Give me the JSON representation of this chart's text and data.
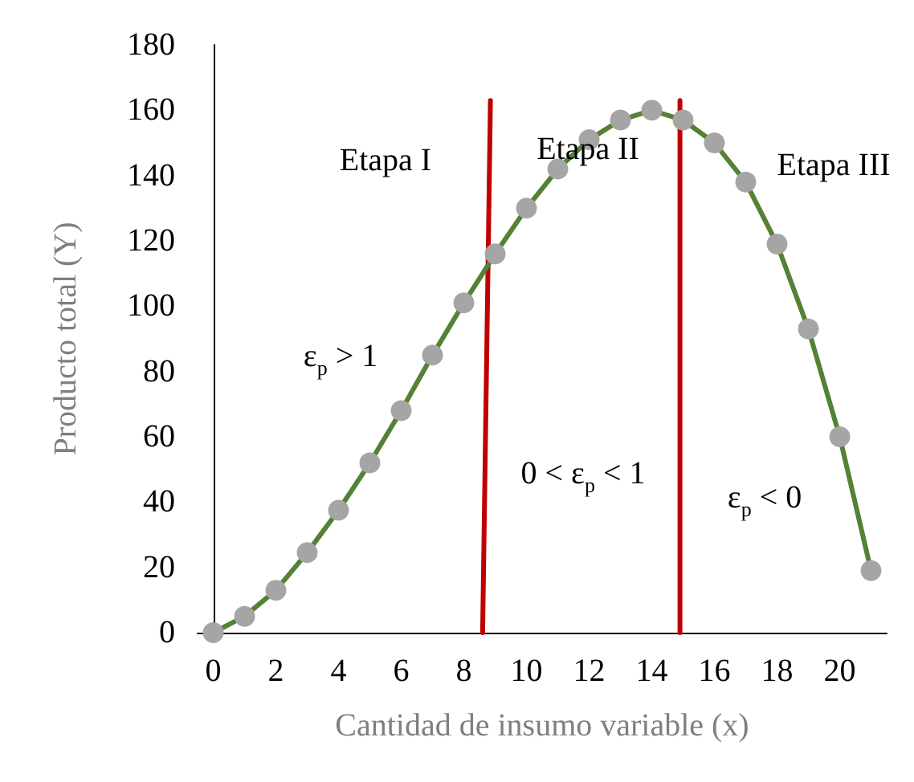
{
  "chart_data": {
    "type": "line",
    "xlabel": "Cantidad de insumo variable (x)",
    "ylabel": "Producto total (Y)",
    "xlim": [
      -0.5,
      21.5
    ],
    "ylim": [
      0,
      180
    ],
    "xticks": [
      0,
      2,
      4,
      6,
      8,
      10,
      12,
      14,
      16,
      18,
      20
    ],
    "yticks": [
      0,
      20,
      40,
      60,
      80,
      100,
      120,
      140,
      160,
      180
    ],
    "grid": false,
    "series": [
      {
        "color": "#538135",
        "marker": "circle",
        "x": [
          0,
          1,
          2,
          3,
          4,
          5,
          6,
          7,
          8,
          9,
          10,
          11,
          12,
          13,
          14,
          15,
          16,
          17,
          18,
          19,
          20,
          21
        ],
        "values": [
          0,
          5,
          13,
          24.5,
          37.5,
          52,
          68,
          85,
          101,
          116,
          130,
          142,
          151,
          157,
          160,
          157,
          150,
          138,
          119,
          93,
          60,
          19
        ]
      },
      {
        "color": "#c00000",
        "marker": "none",
        "x": [
          8.6,
          8.85
        ],
        "values": [
          0,
          163
        ]
      },
      {
        "color": "#c00000",
        "marker": "none",
        "x": [
          14.9,
          14.9
        ],
        "values": [
          0,
          163
        ]
      }
    ],
    "annotations": [
      "Etapa I",
      "Etapa II",
      "Etapa III",
      "ε$_{p}$ > 1",
      "0 < ε$_{p}$ < 1",
      "ε$_{p}$ < 0"
    ]
  }
}
